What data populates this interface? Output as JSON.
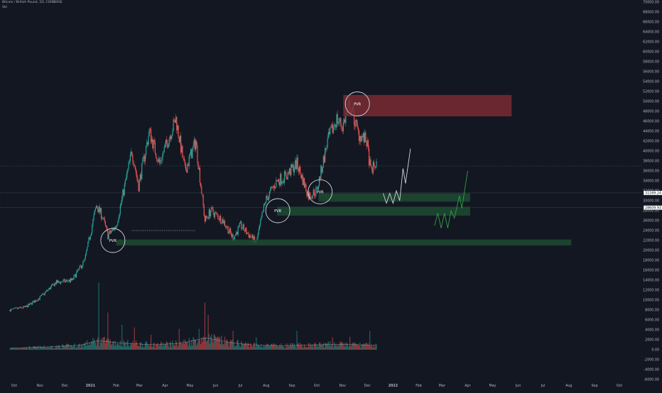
{
  "header": {
    "symbol": "Bitcoin / British Pound, 1D, COINBASE",
    "volume_label": "Vol"
  },
  "colors": {
    "background": "#131722",
    "up": "#26a69a",
    "down": "#ef5350",
    "text": "#b2b5be",
    "zone_red": "#7a2a33",
    "zone_green": "#1e4a33",
    "pvr_circle": "#d1d4dc",
    "price_line": "#5d606b",
    "projection_white": "#d1d4dc",
    "projection_green": "#2ea043"
  },
  "chart_data": {
    "type": "candlestick",
    "title": "Bitcoin / British Pound, 1D, COINBASE",
    "ylim": [
      -6000,
      70000
    ],
    "y_ticks": [
      -6000,
      -4000,
      -2000,
      0,
      2000,
      4000,
      6000,
      8000,
      10000,
      12000,
      14000,
      16000,
      18000,
      20000,
      22000,
      24000,
      26000,
      28000,
      30000,
      32000,
      34000,
      36000,
      38000,
      40000,
      42000,
      44000,
      46000,
      48000,
      50000,
      52000,
      54000,
      56000,
      58000,
      60000,
      62000,
      64000,
      66000,
      68000,
      70000
    ],
    "x_ticks": [
      "Oct",
      "Nov",
      "Dec",
      "2021",
      "Feb",
      "Mar",
      "Apr",
      "May",
      "Jun",
      "Jul",
      "Aug",
      "Sep",
      "Oct",
      "Nov",
      "Dec",
      "2022",
      "Feb",
      "Mar",
      "Apr",
      "May",
      "Jun",
      "Jul",
      "Aug",
      "Sep",
      "Oct"
    ],
    "x_tick_months": [
      "2020-10",
      "2020-11",
      "2020-12",
      "2021-01",
      "2021-02",
      "2021-03",
      "2021-04",
      "2021-05",
      "2021-06",
      "2021-07",
      "2021-08",
      "2021-09",
      "2021-10",
      "2021-11",
      "2021-12",
      "2022-01",
      "2022-02",
      "2022-03",
      "2022-04",
      "2022-05",
      "2022-06",
      "2022-07",
      "2022-08",
      "2022-09",
      "2022-10"
    ],
    "price_path": [
      [
        "2020-09-26",
        8000
      ],
      [
        "2020-10-15",
        8600
      ],
      [
        "2020-11-01",
        10500
      ],
      [
        "2020-11-20",
        13500
      ],
      [
        "2020-12-10",
        14000
      ],
      [
        "2020-12-25",
        18000
      ],
      [
        "2021-01-08",
        29000
      ],
      [
        "2021-01-15",
        27000
      ],
      [
        "2021-01-22",
        23000
      ],
      [
        "2021-02-01",
        25000
      ],
      [
        "2021-02-10",
        32000
      ],
      [
        "2021-02-20",
        40000
      ],
      [
        "2021-02-28",
        33000
      ],
      [
        "2021-03-13",
        44000
      ],
      [
        "2021-03-25",
        37500
      ],
      [
        "2021-04-14",
        46500
      ],
      [
        "2021-04-25",
        36000
      ],
      [
        "2021-05-08",
        42000
      ],
      [
        "2021-05-19",
        26000
      ],
      [
        "2021-05-26",
        28000
      ],
      [
        "2021-06-10",
        26000
      ],
      [
        "2021-06-22",
        22500
      ],
      [
        "2021-07-01",
        25000
      ],
      [
        "2021-07-20",
        21500
      ],
      [
        "2021-07-31",
        30000
      ],
      [
        "2021-08-14",
        34000
      ],
      [
        "2021-08-25",
        35000
      ],
      [
        "2021-09-07",
        37500
      ],
      [
        "2021-09-21",
        31000
      ],
      [
        "2021-10-01",
        32000
      ],
      [
        "2021-10-14",
        42000
      ],
      [
        "2021-10-25",
        46500
      ],
      [
        "2021-11-01",
        45000
      ],
      [
        "2021-11-10",
        49500
      ],
      [
        "2021-11-20",
        43500
      ],
      [
        "2021-11-30",
        42000
      ],
      [
        "2021-12-05",
        36000
      ],
      [
        "2021-12-12",
        37500
      ]
    ],
    "volume_path": [
      [
        "2020-09-26",
        300
      ],
      [
        "2020-11-15",
        600
      ],
      [
        "2020-12-20",
        900
      ],
      [
        "2021-01-10",
        1800
      ],
      [
        "2021-02-10",
        1300
      ],
      [
        "2021-03-20",
        1000
      ],
      [
        "2021-04-20",
        1300
      ],
      [
        "2021-05-20",
        2400
      ],
      [
        "2021-06-20",
        1400
      ],
      [
        "2021-07-20",
        900
      ],
      [
        "2021-08-20",
        800
      ],
      [
        "2021-09-20",
        900
      ],
      [
        "2021-10-20",
        1100
      ],
      [
        "2021-11-20",
        1000
      ],
      [
        "2021-12-12",
        800
      ]
    ],
    "volume_spikes": [
      [
        "2021-01-11",
        13500
      ],
      [
        "2021-01-22",
        7500
      ],
      [
        "2021-02-08",
        5000
      ],
      [
        "2021-02-23",
        4500
      ],
      [
        "2021-03-15",
        3000
      ],
      [
        "2021-04-18",
        4200
      ],
      [
        "2021-05-12",
        4200
      ],
      [
        "2021-05-19",
        9500
      ],
      [
        "2021-05-23",
        7000
      ],
      [
        "2021-06-22",
        3800
      ],
      [
        "2021-07-20",
        2500
      ],
      [
        "2021-09-07",
        3800
      ],
      [
        "2021-10-20",
        2500
      ],
      [
        "2021-11-10",
        2600
      ],
      [
        "2021-12-04",
        3800
      ]
    ],
    "price_lines": [
      {
        "value": 31589.24,
        "label": "31589.24"
      },
      {
        "value": 28609.93,
        "label": "28609.93"
      }
    ],
    "current_price_line": 37000,
    "zones": [
      {
        "color": "red",
        "date_from": "2021-11-02",
        "date_to": "2022-05-24",
        "price_from": 47000,
        "price_to": 51300
      },
      {
        "color": "green",
        "date_from": "2021-10-03",
        "date_to": "2022-04-04",
        "price_from": 29800,
        "price_to": 31500
      },
      {
        "color": "green",
        "date_from": "2021-08-14",
        "date_to": "2022-04-04",
        "price_from": 27000,
        "price_to": 28800
      },
      {
        "color": "green",
        "date_from": "2021-02-01",
        "date_to": "2022-08-04",
        "price_from": 21000,
        "price_to": 22200
      }
    ],
    "pvr_markers": [
      {
        "label": "PVR",
        "date": "2021-01-28",
        "price": 22000
      },
      {
        "label": "PVR",
        "date": "2021-08-15",
        "price": 28000
      },
      {
        "label": "PVR",
        "date": "2021-10-05",
        "price": 31800
      },
      {
        "label": "PVR",
        "date": "2021-11-19",
        "price": 49500
      }
    ],
    "dashed_segment": {
      "date_from": "2021-02-20",
      "date_to": "2021-05-07",
      "price": 24000
    },
    "projections": [
      {
        "color": "white",
        "points": [
          [
            "2021-12-20",
            31500
          ],
          [
            "2021-12-24",
            29500
          ],
          [
            "2021-12-28",
            31500
          ],
          [
            "2022-01-01",
            29500
          ],
          [
            "2022-01-05",
            32000
          ],
          [
            "2022-01-09",
            30000
          ],
          [
            "2022-01-13",
            36500
          ],
          [
            "2022-01-16",
            33500
          ],
          [
            "2022-01-22",
            40500
          ]
        ]
      },
      {
        "color": "green",
        "points": [
          [
            "2022-02-20",
            25000
          ],
          [
            "2022-02-24",
            27500
          ],
          [
            "2022-02-28",
            24500
          ],
          [
            "2022-03-04",
            27500
          ],
          [
            "2022-03-08",
            24500
          ],
          [
            "2022-03-12",
            28000
          ],
          [
            "2022-03-16",
            26500
          ],
          [
            "2022-03-22",
            31000
          ],
          [
            "2022-03-25",
            28500
          ],
          [
            "2022-04-01",
            36000
          ]
        ]
      }
    ]
  }
}
